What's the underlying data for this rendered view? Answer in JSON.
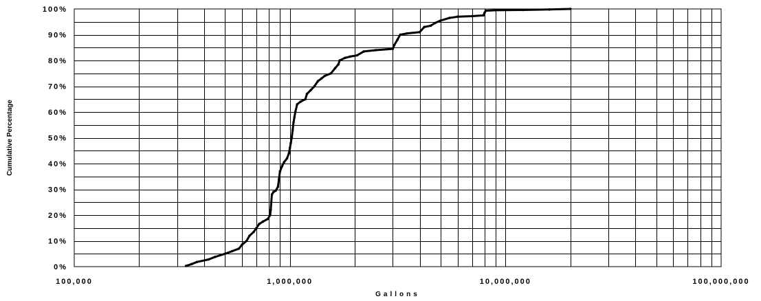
{
  "chart_data": {
    "type": "line",
    "title": "",
    "xlabel": "Gallons",
    "ylabel": "Cumulative Percentage",
    "x_scale": "log",
    "xlim": [
      100000,
      100000000
    ],
    "ylim": [
      0,
      100
    ],
    "grid": true,
    "legend": "none",
    "x_tick_labels": [
      {
        "value": 100000,
        "label": "100,000"
      },
      {
        "value": 1000000,
        "label": "1,000,000"
      },
      {
        "value": 10000000,
        "label": "10,000,000"
      },
      {
        "value": 100000000,
        "label": "100,000,000"
      }
    ],
    "y_tick_labels": [
      {
        "value": 0,
        "label": "0%"
      },
      {
        "value": 10,
        "label": "10%"
      },
      {
        "value": 20,
        "label": "20%"
      },
      {
        "value": 30,
        "label": "30%"
      },
      {
        "value": 40,
        "label": "40%"
      },
      {
        "value": 50,
        "label": "50%"
      },
      {
        "value": 60,
        "label": "60%"
      },
      {
        "value": 70,
        "label": "70%"
      },
      {
        "value": 80,
        "label": "80%"
      },
      {
        "value": 90,
        "label": "90%"
      },
      {
        "value": 100,
        "label": "100%"
      }
    ],
    "series": [
      {
        "color": "#000000",
        "points": [
          [
            330000,
            0.3
          ],
          [
            350000,
            1.0
          ],
          [
            370000,
            1.8
          ],
          [
            420000,
            2.8
          ],
          [
            450000,
            3.8
          ],
          [
            500000,
            5.0
          ],
          [
            540000,
            6.0
          ],
          [
            580000,
            7.0
          ],
          [
            600000,
            8.5
          ],
          [
            630000,
            10.0
          ],
          [
            650000,
            12.0
          ],
          [
            680000,
            13.5
          ],
          [
            700000,
            15.0
          ],
          [
            720000,
            16.5
          ],
          [
            750000,
            17.5
          ],
          [
            790000,
            18.5
          ],
          [
            810000,
            20.0
          ],
          [
            815000,
            22.0
          ],
          [
            820000,
            25.0
          ],
          [
            825000,
            28.0
          ],
          [
            840000,
            29.0
          ],
          [
            860000,
            29.5
          ],
          [
            880000,
            31.0
          ],
          [
            890000,
            34.0
          ],
          [
            900000,
            37.0
          ],
          [
            920000,
            39.0
          ],
          [
            940000,
            40.5
          ],
          [
            970000,
            42.0
          ],
          [
            990000,
            44.0
          ],
          [
            1000000,
            46.0
          ],
          [
            1010000,
            48.0
          ],
          [
            1020000,
            50.0
          ],
          [
            1030000,
            53.0
          ],
          [
            1040000,
            56.0
          ],
          [
            1050000,
            58.0
          ],
          [
            1060000,
            60.0
          ],
          [
            1080000,
            63.0
          ],
          [
            1120000,
            64.0
          ],
          [
            1180000,
            65.0
          ],
          [
            1200000,
            67.0
          ],
          [
            1250000,
            68.5
          ],
          [
            1300000,
            70.0
          ],
          [
            1350000,
            72.0
          ],
          [
            1400000,
            73.0
          ],
          [
            1450000,
            74.0
          ],
          [
            1550000,
            75.0
          ],
          [
            1620000,
            77.0
          ],
          [
            1680000,
            78.5
          ],
          [
            1700000,
            80.0
          ],
          [
            1800000,
            81.0
          ],
          [
            1900000,
            81.5
          ],
          [
            2050000,
            82.0
          ],
          [
            2200000,
            83.5
          ],
          [
            2500000,
            84.0
          ],
          [
            3000000,
            84.5
          ],
          [
            3050000,
            86.0
          ],
          [
            3150000,
            88.0
          ],
          [
            3250000,
            90.0
          ],
          [
            3500000,
            90.5
          ],
          [
            4000000,
            91.0
          ],
          [
            4200000,
            93.0
          ],
          [
            4500000,
            93.5
          ],
          [
            4700000,
            94.5
          ],
          [
            5000000,
            95.5
          ],
          [
            5500000,
            96.5
          ],
          [
            6000000,
            97.0
          ],
          [
            7000000,
            97.2
          ],
          [
            7900000,
            97.5
          ],
          [
            8000000,
            98.5
          ],
          [
            8100000,
            99.3
          ],
          [
            9000000,
            99.5
          ],
          [
            12000000,
            99.6
          ],
          [
            16000000,
            99.8
          ],
          [
            20000000,
            100.0
          ]
        ]
      }
    ]
  }
}
